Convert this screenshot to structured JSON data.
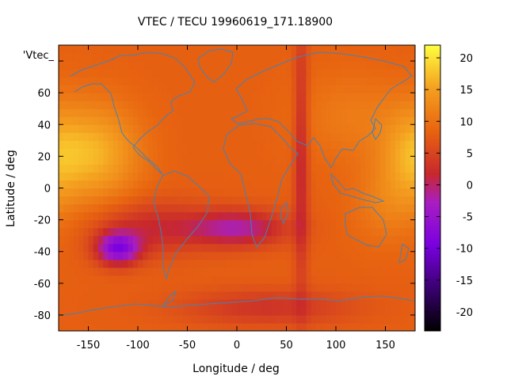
{
  "chart_data": {
    "type": "heatmap",
    "title": "VTEC / TECU 19960619_171.18900",
    "xlabel": "Longitude / deg",
    "ylabel": "Latitude / deg",
    "series_label": "'Vtec_",
    "xlim": [
      -180,
      180
    ],
    "ylim": [
      -90,
      90
    ],
    "xticks": [
      -150,
      -100,
      -50,
      0,
      50,
      100,
      150
    ],
    "yticks": [
      -80,
      -60,
      -40,
      -20,
      0,
      20,
      40,
      60,
      80
    ],
    "colorbar": {
      "range": [
        -23,
        22
      ],
      "ticks": [
        20,
        15,
        10,
        5,
        0,
        -5,
        -10,
        -15,
        -20
      ]
    },
    "grid_resolution": {
      "dlon": 5,
      "dlat": 5
    },
    "features": {
      "background_level": 8,
      "high_regions": [
        {
          "lon": -140,
          "lat": 22,
          "peak": 16,
          "spread_lon": 30,
          "spread_lat": 22
        },
        {
          "lon": 175,
          "lat": 20,
          "peak": 14,
          "spread_lon": 22,
          "spread_lat": 22
        },
        {
          "lon": 115,
          "lat": 45,
          "peak": 11,
          "spread_lon": 40,
          "spread_lat": 20
        },
        {
          "lon": 150,
          "lat": -10,
          "peak": 11,
          "spread_lon": 25,
          "spread_lat": 18
        }
      ],
      "low_regions": [
        {
          "lon": -120,
          "lat": -38,
          "trough": -7,
          "spread_lon": 15,
          "spread_lat": 7
        },
        {
          "lon": 0,
          "lat": -25,
          "trough": -2,
          "spread_lon": 35,
          "spread_lat": 8
        },
        {
          "lon": -90,
          "lat": -25,
          "trough": 2,
          "spread_lon": 40,
          "spread_lat": 12
        },
        {
          "lon": 65,
          "lat": 20,
          "trough": 1,
          "spread_lon": 5,
          "spread_lat": 60
        },
        {
          "lon": 30,
          "lat": -75,
          "trough": 3,
          "spread_lon": 60,
          "spread_lat": 8
        }
      ]
    },
    "overlay": "world coastlines"
  },
  "colors": {
    "coastline": "#4682b4",
    "axis": "#000000"
  }
}
